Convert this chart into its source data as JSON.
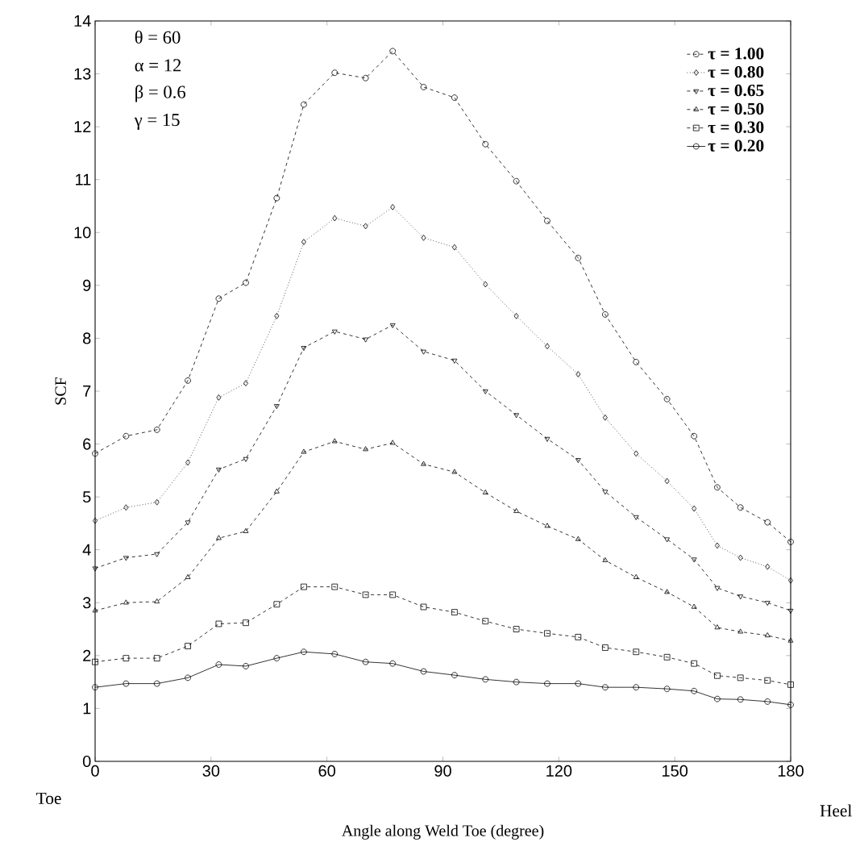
{
  "chart_data": {
    "type": "line",
    "xlabel": "Angle along Weld Toe (degree)",
    "ylabel": "SCF",
    "annotations": [
      "θ = 60",
      "α = 12",
      "β = 0.6",
      "γ = 15",
      "Toe",
      "Heel"
    ],
    "x": [
      0,
      8,
      16,
      24,
      32,
      39,
      47,
      54,
      62,
      70,
      77,
      85,
      93,
      101,
      109,
      117,
      125,
      132,
      140,
      148,
      155,
      161,
      167,
      174,
      180
    ],
    "series": [
      {
        "name": "τ = 1.00",
        "color": "#000000",
        "marker": "circle",
        "line_style": "dashed",
        "values": [
          5.82,
          6.15,
          6.27,
          7.2,
          8.75,
          9.05,
          10.65,
          12.42,
          13.02,
          12.92,
          13.43,
          12.75,
          12.55,
          11.67,
          10.97,
          10.22,
          9.52,
          8.45,
          7.55,
          6.85,
          6.15,
          5.18,
          4.8,
          4.52,
          4.15
        ]
      },
      {
        "name": "τ = 0.80",
        "color": "#000000",
        "marker": "diamond",
        "line_style": "dotted",
        "values": [
          4.55,
          4.8,
          4.9,
          5.65,
          6.88,
          7.15,
          8.42,
          9.82,
          10.27,
          10.12,
          10.48,
          9.9,
          9.72,
          9.02,
          8.42,
          7.85,
          7.32,
          6.5,
          5.82,
          5.3,
          4.78,
          4.08,
          3.85,
          3.68,
          3.42
        ]
      },
      {
        "name": "τ = 0.65",
        "color": "#000000",
        "marker": "triangle",
        "line_style": "dashed",
        "values": [
          3.65,
          3.85,
          3.92,
          4.52,
          5.52,
          5.72,
          6.72,
          7.82,
          8.13,
          7.98,
          8.25,
          7.75,
          7.58,
          7.0,
          6.55,
          6.1,
          5.7,
          5.1,
          4.62,
          4.2,
          3.82,
          3.28,
          3.12,
          3.0,
          2.85
        ]
      },
      {
        "name": "τ = 0.50",
        "color": "#000000",
        "marker": "triangle",
        "line_style": "dashed",
        "values": [
          2.85,
          3.0,
          3.02,
          3.48,
          4.22,
          4.35,
          5.1,
          5.85,
          6.05,
          5.9,
          6.02,
          5.62,
          5.47,
          5.08,
          4.73,
          4.45,
          4.2,
          3.8,
          3.48,
          3.2,
          2.92,
          2.53,
          2.45,
          2.38,
          2.28
        ]
      },
      {
        "name": "τ = 0.30",
        "color": "#000000",
        "marker": "square",
        "line_style": "dashed",
        "values": [
          1.88,
          1.95,
          1.95,
          2.18,
          2.6,
          2.62,
          2.97,
          3.3,
          3.3,
          3.15,
          3.15,
          2.92,
          2.82,
          2.65,
          2.5,
          2.42,
          2.35,
          2.15,
          2.07,
          1.97,
          1.85,
          1.62,
          1.58,
          1.53,
          1.45
        ]
      },
      {
        "name": "τ = 0.20",
        "color": "#000000",
        "marker": "circle",
        "line_style": "solid",
        "values": [
          1.4,
          1.47,
          1.47,
          1.58,
          1.83,
          1.8,
          1.95,
          2.07,
          2.03,
          1.88,
          1.85,
          1.7,
          1.63,
          1.55,
          1.5,
          1.47,
          1.47,
          1.4,
          1.4,
          1.37,
          1.33,
          1.18,
          1.17,
          1.13,
          1.07
        ]
      }
    ],
    "xlim": [
      0,
      180
    ],
    "ylim": [
      0,
      14
    ],
    "xticks": [
      0,
      30,
      60,
      90,
      120,
      150,
      180
    ],
    "yticks": [
      0,
      1,
      2,
      3,
      4,
      5,
      6,
      7,
      8,
      9,
      10,
      11,
      12,
      13,
      14
    ],
    "grid": false,
    "legend": "top right"
  }
}
